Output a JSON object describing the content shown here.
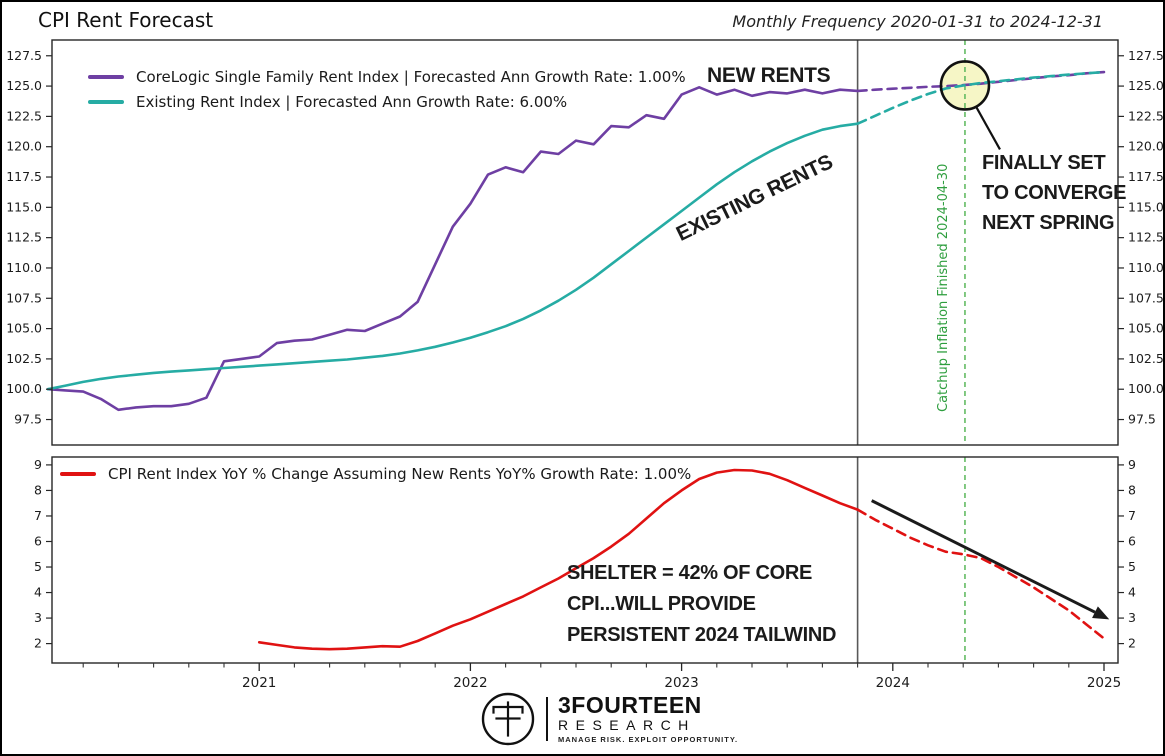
{
  "header": {
    "title": "CPI Rent Forecast",
    "subtitle": "Monthly Frequency 2020-01-31 to 2024-12-31"
  },
  "top_panel": {
    "legend": [
      {
        "label": "CoreLogic Single Family Rent Index | Forecasted Ann Growth Rate: 1.00%",
        "color": "#6e3fa3"
      },
      {
        "label": "Existing Rent Index | Forecasted Ann Growth Rate: 6.00%",
        "color": "#26aca4"
      }
    ],
    "annotations": {
      "new_rents": "NEW RENTS",
      "existing_rents": "EXISTING RENTS",
      "converge_lines": [
        "FINALLY SET",
        "TO CONVERGE",
        "NEXT SPRING"
      ],
      "catchup_label": "Catchup Inflation Finished 2024-04-30"
    }
  },
  "bottom_panel": {
    "legend": [
      {
        "label": "CPI Rent Index YoY % Change Assuming New Rents YoY% Growth Rate: 1.00%",
        "color": "#e01212"
      }
    ],
    "annotation_lines": [
      "SHELTER  =  42% OF CORE",
      "CPI...WILL PROVIDE",
      "PERSISTENT 2024 TAILWIND"
    ]
  },
  "footer": {
    "brand": "3FOURTEEN",
    "brand_sub": "RESEARCH",
    "tagline": "MANAGE RISK. EXPLOIT OPPORTUNITY."
  },
  "chart_data": [
    {
      "type": "line",
      "panel": "top",
      "x_unit": "months_since_2020-01",
      "ylim": [
        95.4,
        128.8
      ],
      "yticks": [
        97.5,
        100.0,
        102.5,
        105.0,
        107.5,
        110.0,
        112.5,
        115.0,
        117.5,
        120.0,
        122.5,
        125.0,
        127.5
      ],
      "forecast_boundary_m": 46,
      "event_line_m": 52.1,
      "highlight": {
        "m": 52.1,
        "value": 125.05,
        "radius": 24,
        "fill": "#f6f6c6"
      },
      "series": [
        {
          "name": "CoreLogic Single Family Rent Index (actual)",
          "color": "#6e3fa3",
          "dash": false,
          "start_m": 0,
          "values": [
            100.0,
            99.9,
            99.8,
            99.2,
            98.3,
            98.5,
            98.6,
            98.6,
            98.8,
            99.3,
            102.3,
            102.5,
            102.7,
            103.8,
            104.0,
            104.1,
            104.5,
            104.9,
            104.8,
            105.4,
            106.0,
            107.2,
            110.3,
            113.4,
            115.3,
            117.7,
            118.3,
            117.9,
            119.6,
            119.4,
            120.5,
            120.2,
            121.7,
            121.6,
            122.6,
            122.3,
            124.3,
            124.9,
            124.3,
            124.7,
            124.2,
            124.5,
            124.4,
            124.7,
            124.4,
            124.7,
            124.6
          ]
        },
        {
          "name": "CoreLogic Single Family Rent Index (forecast 1.00% ann)",
          "color": "#6e3fa3",
          "dash": true,
          "start_m": 46,
          "values": [
            124.6,
            124.7,
            124.78,
            124.86,
            124.94,
            125.0,
            125.08,
            125.2,
            125.35,
            125.5,
            125.65,
            125.8,
            125.9,
            126.05,
            126.15
          ]
        },
        {
          "name": "Existing Rent Index (actual)",
          "color": "#26aca4",
          "dash": false,
          "start_m": 0,
          "values": [
            100.0,
            100.3,
            100.6,
            100.85,
            101.05,
            101.2,
            101.35,
            101.45,
            101.55,
            101.65,
            101.75,
            101.85,
            101.95,
            102.05,
            102.15,
            102.25,
            102.35,
            102.45,
            102.6,
            102.75,
            102.95,
            103.2,
            103.5,
            103.85,
            104.25,
            104.7,
            105.2,
            105.8,
            106.5,
            107.3,
            108.2,
            109.2,
            110.3,
            111.4,
            112.5,
            113.6,
            114.7,
            115.8,
            116.9,
            117.9,
            118.8,
            119.6,
            120.3,
            120.9,
            121.4,
            121.7,
            121.9
          ]
        },
        {
          "name": "Existing Rent Index (forecast 6.00% ann catchup)",
          "color": "#26aca4",
          "dash": true,
          "start_m": 46,
          "values": [
            121.9,
            122.55,
            123.2,
            123.8,
            124.35,
            124.8,
            125.05,
            125.25,
            125.4,
            125.55,
            125.7,
            125.82,
            125.95,
            126.05,
            126.15
          ]
        }
      ]
    },
    {
      "type": "line",
      "panel": "bottom",
      "x_unit": "months_since_2020-01",
      "ylim": [
        1.24,
        9.31
      ],
      "yticks": [
        2,
        3,
        4,
        5,
        6,
        7,
        8,
        9
      ],
      "xticks": [
        {
          "m": 12,
          "label": "2021"
        },
        {
          "m": 24,
          "label": "2022"
        },
        {
          "m": 36,
          "label": "2023"
        },
        {
          "m": 48,
          "label": "2024"
        },
        {
          "m": 60,
          "label": "2025"
        }
      ],
      "forecast_boundary_m": 46,
      "event_line_m": 52.1,
      "arrow": {
        "from_m": 46.8,
        "from_v": 7.6,
        "to_m": 60.3,
        "to_v": 2.95
      },
      "series": [
        {
          "name": "CPI Rent Index YoY % Change (actual)",
          "color": "#e01212",
          "dash": false,
          "start_m": 12,
          "values": [
            2.05,
            1.95,
            1.85,
            1.8,
            1.78,
            1.8,
            1.85,
            1.9,
            1.88,
            2.1,
            2.4,
            2.7,
            2.95,
            3.25,
            3.55,
            3.85,
            4.2,
            4.55,
            4.95,
            5.35,
            5.8,
            6.3,
            6.9,
            7.5,
            8.0,
            8.45,
            8.7,
            8.8,
            8.78,
            8.65,
            8.4,
            8.1,
            7.8,
            7.5,
            7.25
          ]
        },
        {
          "name": "CPI Rent Index YoY % Change (forecast)",
          "color": "#e01212",
          "dash": true,
          "start_m": 46,
          "values": [
            7.25,
            6.85,
            6.5,
            6.15,
            5.85,
            5.6,
            5.5,
            5.35,
            5.0,
            4.6,
            4.2,
            3.75,
            3.3,
            2.75,
            2.2
          ]
        }
      ]
    }
  ]
}
